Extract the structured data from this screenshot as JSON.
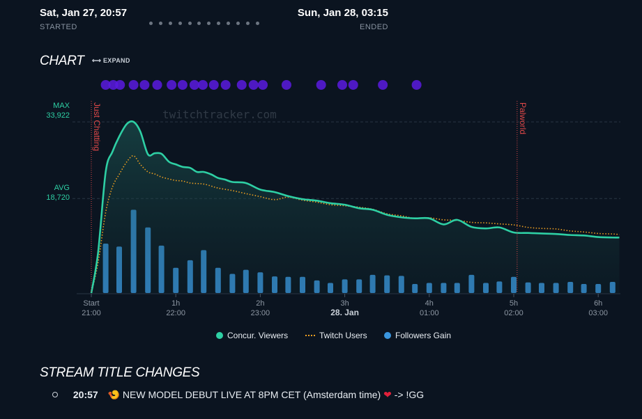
{
  "header": {
    "start_time": "Sat, Jan 27, 20:57",
    "start_label": "STARTED",
    "end_time": "Sun, Jan 28, 03:15",
    "end_label": "ENDED"
  },
  "chart_section": {
    "title": "CHART",
    "expand_label": "⟷ EXPAND",
    "watermark": "twitchtracker.com",
    "max_label": "MAX",
    "max_value": "33,922",
    "avg_label": "AVG",
    "avg_value": "18,720"
  },
  "chart_data": {
    "type": "line",
    "x_unit": "hours since start",
    "xlim": [
      0,
      6.33
    ],
    "ylim": [
      0,
      37000
    ],
    "x_ticks": [
      {
        "x": 0,
        "top": "Start",
        "bottom": "21:00"
      },
      {
        "x": 1,
        "top": "1h",
        "bottom": "22:00"
      },
      {
        "x": 2,
        "top": "2h",
        "bottom": "23:00"
      },
      {
        "x": 3,
        "top": "3h",
        "bottom": "28. Jan"
      },
      {
        "x": 4,
        "top": "4h",
        "bottom": "01:00"
      },
      {
        "x": 5,
        "top": "5h",
        "bottom": "02:00"
      },
      {
        "x": 6,
        "top": "6h",
        "bottom": "03:00"
      }
    ],
    "reference_lines": [
      {
        "label": "MAX",
        "value": 33922
      },
      {
        "label": "AVG",
        "value": 18720
      }
    ],
    "category_markers": [
      {
        "x": 0.0,
        "label": "Just Chatting",
        "color": "#e04848"
      },
      {
        "x": 5.04,
        "label": "Palworld",
        "color": "#e04848"
      }
    ],
    "series": [
      {
        "name": "Concur. Viewers",
        "color": "#2ecfa4",
        "x": [
          0,
          0.08,
          0.17,
          0.25,
          0.33,
          0.42,
          0.5,
          0.58,
          0.67,
          0.75,
          0.83,
          0.92,
          1.0,
          1.08,
          1.17,
          1.25,
          1.33,
          1.42,
          1.5,
          1.58,
          1.67,
          1.83,
          2.0,
          2.17,
          2.33,
          2.5,
          2.67,
          2.83,
          3.0,
          3.17,
          3.33,
          3.5,
          3.67,
          3.83,
          4.0,
          4.17,
          4.33,
          4.5,
          4.67,
          4.83,
          5.0,
          5.17,
          5.33,
          5.5,
          5.67,
          5.83,
          6.0,
          6.17,
          6.25
        ],
        "values": [
          0,
          8000,
          24000,
          28000,
          31000,
          33500,
          33922,
          32000,
          27500,
          27700,
          27600,
          26000,
          25500,
          25000,
          24800,
          24000,
          24000,
          23500,
          22800,
          22500,
          22000,
          21800,
          20500,
          20000,
          19200,
          18600,
          18300,
          17800,
          17500,
          16800,
          16500,
          15500,
          15000,
          14800,
          14800,
          13600,
          14500,
          13100,
          12800,
          13000,
          12000,
          11900,
          11800,
          11700,
          11500,
          11400,
          11100,
          11000,
          11000
        ]
      },
      {
        "name": "Twitch Users",
        "color": "#f0a020",
        "x": [
          0,
          0.08,
          0.17,
          0.25,
          0.33,
          0.42,
          0.5,
          0.58,
          0.67,
          0.75,
          0.83,
          0.92,
          1.0,
          1.08,
          1.17,
          1.25,
          1.33,
          1.42,
          1.5,
          1.67,
          1.83,
          2.0,
          2.17,
          2.33,
          2.5,
          2.67,
          2.83,
          3.0,
          3.17,
          3.33,
          3.5,
          3.67,
          3.83,
          4.0,
          4.17,
          4.33,
          4.5,
          4.67,
          4.83,
          5.0,
          5.17,
          5.33,
          5.5,
          5.67,
          5.83,
          6.0,
          6.17,
          6.25
        ],
        "values": [
          0,
          6000,
          16000,
          21000,
          23500,
          26000,
          27200,
          25500,
          24000,
          23600,
          23000,
          22600,
          22300,
          22200,
          21800,
          21700,
          21600,
          21200,
          20800,
          20300,
          19700,
          19100,
          18500,
          19000,
          18400,
          18000,
          17500,
          17300,
          17000,
          16600,
          15700,
          15300,
          14800,
          14900,
          14500,
          14400,
          14000,
          13900,
          13700,
          13500,
          13000,
          12800,
          12700,
          12300,
          12100,
          11800,
          11700,
          11600
        ]
      },
      {
        "name": "Followers Gain",
        "color": "#3a96df",
        "type": "bar",
        "x": [
          0.17,
          0.33,
          0.5,
          0.67,
          0.83,
          1.0,
          1.17,
          1.33,
          1.5,
          1.67,
          1.83,
          2.0,
          2.17,
          2.33,
          2.5,
          2.67,
          2.83,
          3.0,
          3.17,
          3.33,
          3.5,
          3.67,
          3.83,
          4.0,
          4.17,
          4.33,
          4.5,
          4.67,
          4.83,
          5.0,
          5.17,
          5.33,
          5.5,
          5.67,
          5.83,
          6.0,
          6.17
        ],
        "values": [
          9800,
          9200,
          16500,
          13000,
          9400,
          5000,
          6500,
          8500,
          5000,
          3800,
          4600,
          4100,
          3300,
          3200,
          3200,
          2500,
          2000,
          2700,
          2700,
          3600,
          3500,
          3400,
          1800,
          2000,
          2000,
          2000,
          3600,
          2000,
          2300,
          3200,
          2100,
          2000,
          2000,
          2200,
          1800,
          1800,
          2200
        ]
      }
    ],
    "event_dots": [
      0.17,
      0.26,
      0.34,
      0.5,
      0.63,
      0.78,
      0.95,
      1.08,
      1.22,
      1.32,
      1.45,
      1.59,
      1.78,
      1.92,
      2.03,
      2.31,
      2.72,
      2.97,
      3.1,
      3.45,
      3.85
    ],
    "legend_position": "bottom"
  },
  "legend": {
    "viewers": "Concur. Viewers",
    "users": "Twitch Users",
    "followers": "Followers Gain"
  },
  "title_changes": {
    "heading": "STREAM TITLE CHANGES",
    "items": [
      {
        "time": "20:57",
        "emoji_start": "🍤",
        "text": "NEW MODEL DEBUT LIVE AT 8PM CET (Amsterdam time)",
        "emoji_end": "❤",
        "suffix": "-> !GG"
      }
    ]
  },
  "colors": {
    "background": "#0b1420",
    "viewers": "#2ecfa4",
    "users": "#f0a020",
    "followers": "#3a96df",
    "events": "#5a1ae0",
    "category_line": "#e04848"
  }
}
